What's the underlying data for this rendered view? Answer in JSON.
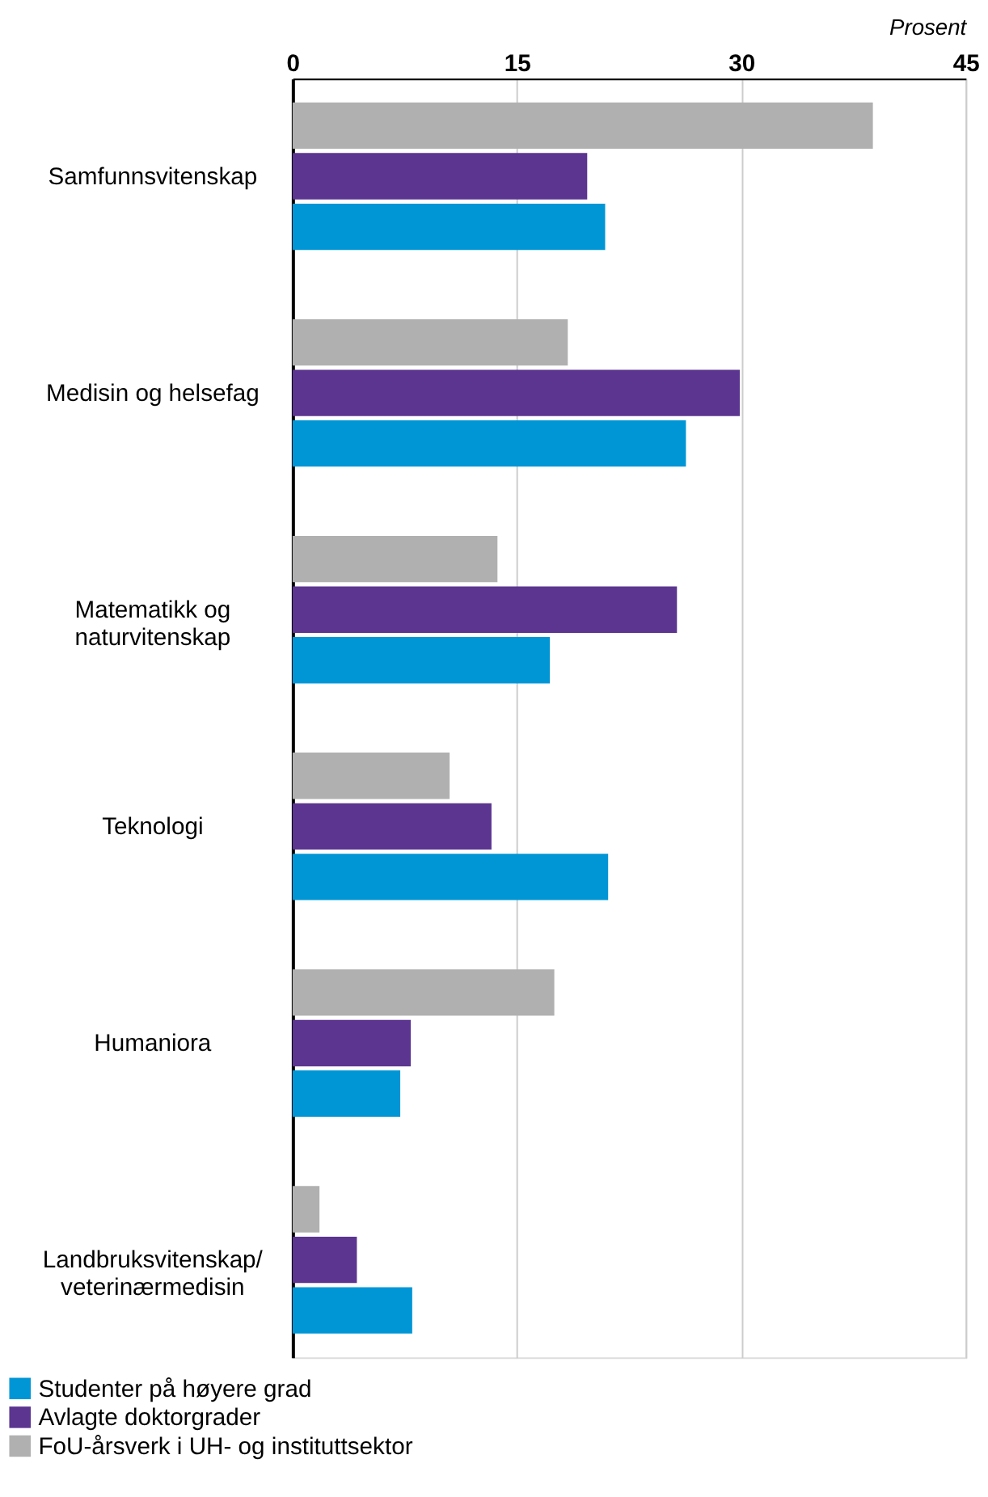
{
  "chart_data": {
    "type": "bar",
    "orientation": "horizontal",
    "xlabel": "Prosent",
    "categories": [
      "Samfunnsvitenskap",
      "Medisin og helsefag",
      "Matematikk og\nnaturvitenskap",
      "Teknologi",
      "Humaniora",
      "Landbruksvitenskap/\nveterinærmedisin"
    ],
    "series": [
      {
        "name": "Studenter på høyere grad",
        "color": "#0096d6",
        "values": [
          20.9,
          26.3,
          17.2,
          21.1,
          7.2,
          8.0
        ]
      },
      {
        "name": "Avlagte doktorgrader",
        "color": "#5b3590",
        "values": [
          19.7,
          29.9,
          25.7,
          13.3,
          7.9,
          4.3
        ]
      },
      {
        "name": "FoU-årsverk i UH- og instituttsektor",
        "color": "#b0b0b0",
        "values": [
          38.8,
          18.4,
          13.7,
          10.5,
          17.5,
          1.8
        ]
      }
    ],
    "xlim": [
      0,
      45
    ],
    "xticks": [
      0,
      15,
      30,
      45
    ],
    "grid": "x",
    "legend": "bottom"
  }
}
